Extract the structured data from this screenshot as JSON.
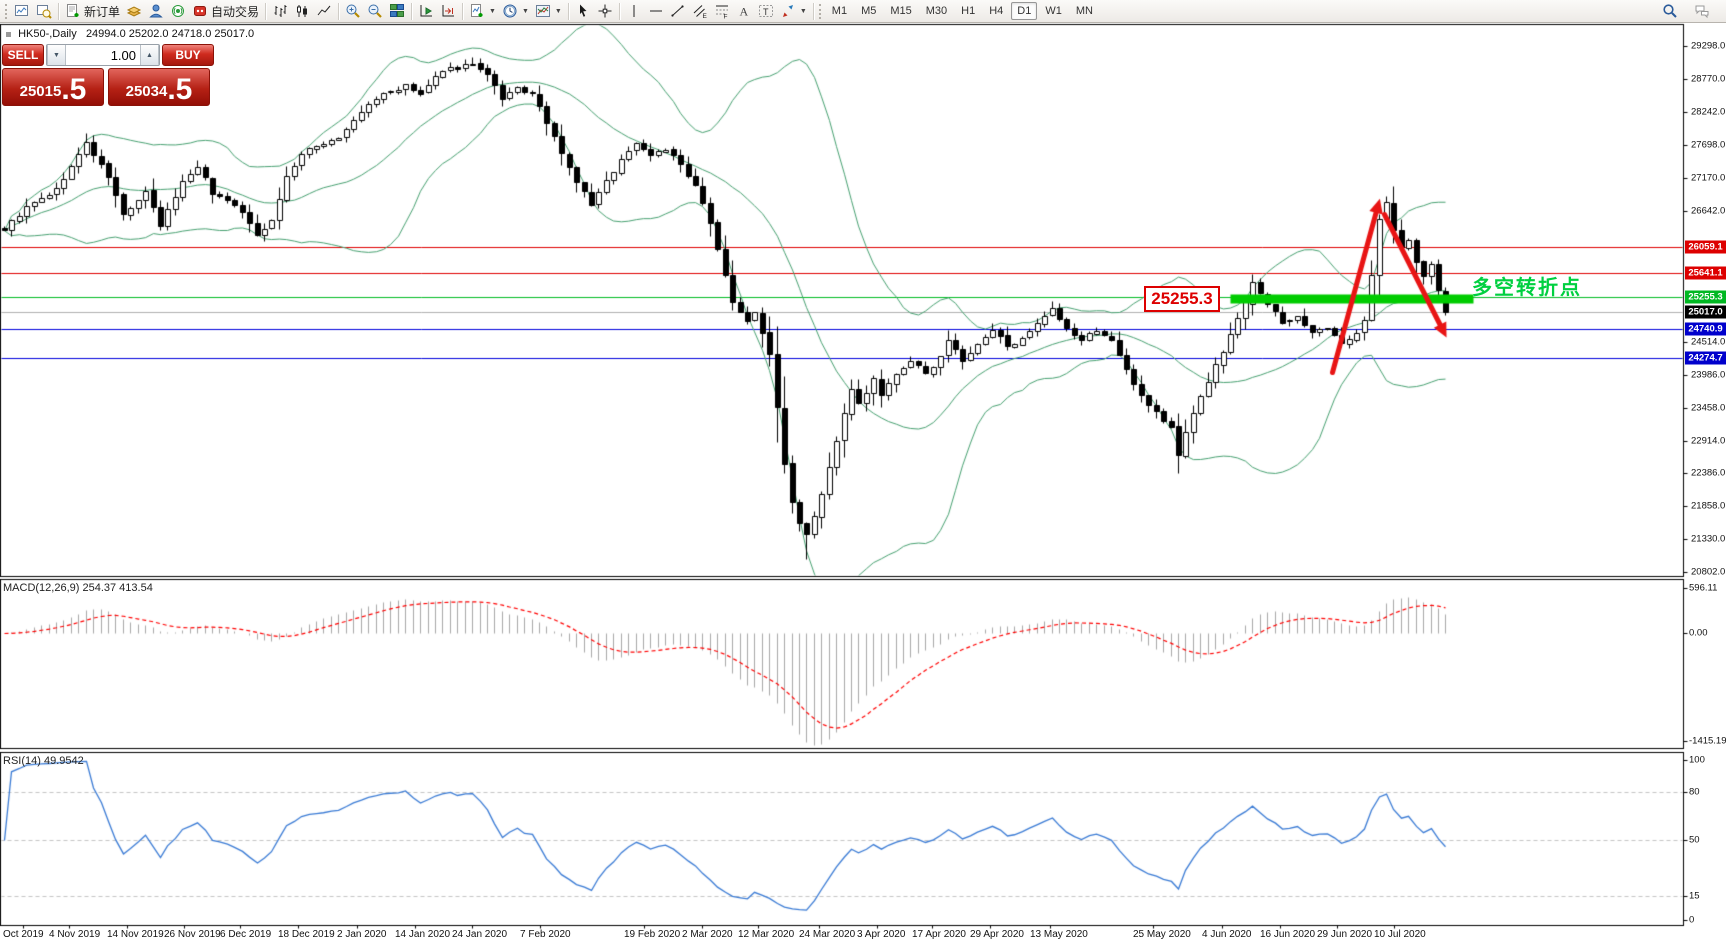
{
  "toolbar": {
    "groups": [
      {
        "items": [
          {
            "name": "new-chart",
            "icon": "new-chart"
          },
          {
            "name": "profiles",
            "icon": "profiles"
          }
        ]
      },
      {
        "items": [
          {
            "name": "new-order",
            "icon": "new-order",
            "label": "新订单"
          },
          {
            "name": "history-center",
            "icon": "history"
          },
          {
            "name": "community",
            "icon": "community"
          },
          {
            "name": "signals",
            "icon": "signals"
          },
          {
            "name": "autotrade",
            "icon": "autotrade",
            "label": "自动交易"
          }
        ]
      },
      {
        "items": [
          {
            "name": "bar-chart",
            "icon": "bar-chart"
          },
          {
            "name": "candlestick-chart",
            "icon": "candle-chart"
          },
          {
            "name": "line-chart",
            "icon": "line-chart"
          }
        ]
      },
      {
        "items": [
          {
            "name": "zoom-in",
            "icon": "zoom-in"
          },
          {
            "name": "zoom-out",
            "icon": "zoom-out"
          },
          {
            "name": "tile-windows",
            "icon": "tile"
          }
        ]
      },
      {
        "items": [
          {
            "name": "auto-scroll",
            "icon": "auto-scroll"
          },
          {
            "name": "chart-shift",
            "icon": "chart-shift"
          }
        ]
      },
      {
        "items": [
          {
            "name": "indicators",
            "icon": "indicators",
            "dropdown": true
          },
          {
            "name": "periods",
            "icon": "periods",
            "dropdown": true
          },
          {
            "name": "templates",
            "icon": "templates",
            "dropdown": true
          }
        ]
      },
      {
        "items": [
          {
            "name": "cursor",
            "icon": "cursor"
          },
          {
            "name": "crosshair",
            "icon": "crosshair"
          }
        ]
      },
      {
        "items": [
          {
            "name": "vertical-line",
            "icon": "vline"
          },
          {
            "name": "horizontal-line",
            "icon": "hline"
          },
          {
            "name": "trendline",
            "icon": "trendline"
          },
          {
            "name": "equidistant-channel",
            "icon": "channel"
          },
          {
            "name": "fibonacci",
            "icon": "fibonacci"
          },
          {
            "name": "text",
            "icon": "text"
          },
          {
            "name": "text-label",
            "icon": "label"
          },
          {
            "name": "arrow-objects",
            "icon": "arrows",
            "dropdown": true
          }
        ]
      }
    ],
    "timeframes": [
      {
        "label": "M1"
      },
      {
        "label": "M5"
      },
      {
        "label": "M15"
      },
      {
        "label": "M30"
      },
      {
        "label": "H1"
      },
      {
        "label": "H4"
      },
      {
        "label": "D1",
        "active": true
      },
      {
        "label": "W1"
      },
      {
        "label": "MN"
      }
    ],
    "right_items": [
      {
        "name": "search",
        "icon": "search"
      },
      {
        "name": "chat",
        "icon": "chat"
      }
    ]
  },
  "window": {
    "symbol_title": "HK50-,Daily",
    "ohlc_text": "24994.0 25202.0 24718.0 25017.0"
  },
  "order_panel": {
    "sell_label": "SELL",
    "buy_label": "BUY",
    "volume": "1.00",
    "sell_price_main": "25015",
    "sell_price_pips": ".5",
    "buy_price_main": "25034",
    "buy_price_pips": ".5"
  },
  "price_axis": {
    "ticks": [
      [
        "29298.0",
        46
      ],
      [
        "28770.0",
        79
      ],
      [
        "28242.0",
        112
      ],
      [
        "27698.0",
        145
      ],
      [
        "27170.0",
        178
      ],
      [
        "26642.0",
        211
      ],
      [
        "24514.0",
        342
      ],
      [
        "23986.0",
        375
      ],
      [
        "23458.0",
        408
      ],
      [
        "22914.0",
        441
      ],
      [
        "22386.0",
        473
      ],
      [
        "21858.0",
        506
      ],
      [
        "21330.0",
        539
      ],
      [
        "20802.0",
        572
      ]
    ],
    "badges": [
      [
        "26059.1",
        247,
        "#dd0000"
      ],
      [
        "25641.1",
        273,
        "#dd0000"
      ],
      [
        "25255.3",
        297,
        "#00b822"
      ],
      [
        "25017.0",
        312,
        "#000000"
      ],
      [
        "24740.9",
        329,
        "#0000cc"
      ],
      [
        "24274.7",
        358,
        "#0000cc"
      ]
    ]
  },
  "date_axis": {
    "labels": [
      [
        "Oct 2019",
        3
      ],
      [
        "4 Nov 2019",
        49
      ],
      [
        "14 Nov 2019",
        107
      ],
      [
        "26 Nov 2019",
        164
      ],
      [
        "6 Dec 2019",
        220
      ],
      [
        "18 Dec 2019",
        278
      ],
      [
        "2 Jan 2020",
        337
      ],
      [
        "14 Jan 2020",
        395
      ],
      [
        "24 Jan 2020",
        452
      ],
      [
        "7 Feb 2020",
        520
      ],
      [
        "19 Feb 2020",
        624
      ],
      [
        "2 Mar 2020",
        682
      ],
      [
        "12 Mar 2020",
        738
      ],
      [
        "24 Mar 2020",
        799
      ],
      [
        "3 Apr 2020",
        857
      ],
      [
        "17 Apr 2020",
        912
      ],
      [
        "29 Apr 2020",
        970
      ],
      [
        "13 May 2020",
        1030
      ],
      [
        "25 May 2020",
        1133
      ],
      [
        "4 Jun 2020",
        1202
      ],
      [
        "16 Jun 2020",
        1260
      ],
      [
        "29 Jun 2020",
        1317
      ],
      [
        "10 Jul 2020",
        1374
      ]
    ]
  },
  "indicator_labels": {
    "macd": "MACD(12,26,9) 254.37 413.54",
    "rsi": "RSI(14) 49.9542"
  },
  "indicator_axes": {
    "macd": [
      [
        "596.11",
        588
      ],
      [
        "0.00",
        633
      ],
      [
        "-1415.19",
        741
      ]
    ],
    "rsi": [
      [
        "100",
        760
      ],
      [
        "80",
        792
      ],
      [
        "50",
        840
      ],
      [
        "15",
        896
      ],
      [
        "0",
        920
      ]
    ]
  },
  "annotations": {
    "level_label": "25255.3",
    "turning_point": "多空转折点"
  },
  "colors": {
    "bull": "#ffffff",
    "bear": "#000000",
    "outline": "#000000",
    "band": "#46a070",
    "pivot_bar": "#00cc00",
    "macd_hist": "#a8a8a8",
    "macd_signal": "#ff0000",
    "rsi": "#3a7bd5",
    "arrow": "#e81414",
    "current": "#b0b0b0"
  },
  "chart_data": {
    "type": "candlestick",
    "symbol": "HK50",
    "period": "Daily",
    "ohlc": {
      "open": 24994.0,
      "high": 25202.0,
      "low": 24718.0,
      "close": 25017.0
    },
    "bid": 25015.5,
    "ask": 25034.5,
    "y_range": [
      20802.0,
      29298.0
    ],
    "y_ticks": [
      29298.0,
      28770.0,
      28242.0,
      27698.0,
      27170.0,
      26642.0,
      24514.0,
      23986.0,
      23458.0,
      22914.0,
      22386.0,
      21858.0,
      21330.0,
      20802.0
    ],
    "x_labels": [
      "Oct 2019",
      "4 Nov 2019",
      "14 Nov 2019",
      "26 Nov 2019",
      "6 Dec 2019",
      "18 Dec 2019",
      "2 Jan 2020",
      "14 Jan 2020",
      "24 Jan 2020",
      "7 Feb 2020",
      "19 Feb 2020",
      "2 Mar 2020",
      "12 Mar 2020",
      "24 Mar 2020",
      "3 Apr 2020",
      "17 Apr 2020",
      "29 Apr 2020",
      "13 May 2020",
      "25 May 2020",
      "4 Jun 2020",
      "16 Jun 2020",
      "29 Jun 2020",
      "10 Jul 2020"
    ],
    "levels": [
      {
        "price": 26059.1,
        "color": "#e00000"
      },
      {
        "price": 25641.1,
        "color": "#e00000"
      },
      {
        "price": 25255.3,
        "color": "#00bb22"
      },
      {
        "price": 25017.0,
        "color": "#b0b0b0"
      },
      {
        "price": 24740.9,
        "color": "#0000dd"
      },
      {
        "price": 24274.7,
        "color": "#0000dd"
      }
    ],
    "candle_count": 195,
    "close_anchors": [
      [
        0,
        26350
      ],
      [
        3,
        26700
      ],
      [
        7,
        26990
      ],
      [
        11,
        27740
      ],
      [
        14,
        27200
      ],
      [
        16,
        26580
      ],
      [
        19,
        26940
      ],
      [
        21,
        26410
      ],
      [
        24,
        27120
      ],
      [
        26,
        27380
      ],
      [
        28,
        26940
      ],
      [
        31,
        26760
      ],
      [
        34,
        26280
      ],
      [
        36,
        26490
      ],
      [
        38,
        27200
      ],
      [
        40,
        27560
      ],
      [
        43,
        27740
      ],
      [
        45,
        27820
      ],
      [
        47,
        28090
      ],
      [
        49,
        28360
      ],
      [
        51,
        28530
      ],
      [
        54,
        28660
      ],
      [
        56,
        28530
      ],
      [
        58,
        28800
      ],
      [
        60,
        28940
      ],
      [
        63,
        29010
      ],
      [
        65,
        28830
      ],
      [
        67,
        28440
      ],
      [
        69,
        28620
      ],
      [
        71,
        28530
      ],
      [
        73,
        28090
      ],
      [
        75,
        27560
      ],
      [
        77,
        27120
      ],
      [
        79,
        26760
      ],
      [
        81,
        27120
      ],
      [
        83,
        27470
      ],
      [
        85,
        27740
      ],
      [
        87,
        27560
      ],
      [
        89,
        27650
      ],
      [
        91,
        27380
      ],
      [
        93,
        27030
      ],
      [
        95,
        26490
      ],
      [
        96,
        26050
      ],
      [
        98,
        25170
      ],
      [
        100,
        24900
      ],
      [
        101,
        24990
      ],
      [
        103,
        24370
      ],
      [
        104,
        23480
      ],
      [
        105,
        22600
      ],
      [
        106,
        21980
      ],
      [
        107,
        21650
      ],
      [
        108,
        21450
      ],
      [
        109,
        21750
      ],
      [
        110,
        22100
      ],
      [
        111,
        22500
      ],
      [
        112,
        22960
      ],
      [
        113,
        23360
      ],
      [
        114,
        23760
      ],
      [
        115,
        23520
      ],
      [
        117,
        23920
      ],
      [
        118,
        23680
      ],
      [
        120,
        24000
      ],
      [
        122,
        24240
      ],
      [
        124,
        24000
      ],
      [
        126,
        24320
      ],
      [
        127,
        24570
      ],
      [
        129,
        24240
      ],
      [
        131,
        24480
      ],
      [
        133,
        24730
      ],
      [
        135,
        24480
      ],
      [
        137,
        24570
      ],
      [
        139,
        24810
      ],
      [
        141,
        25050
      ],
      [
        143,
        24730
      ],
      [
        145,
        24570
      ],
      [
        147,
        24730
      ],
      [
        149,
        24570
      ],
      [
        151,
        24080
      ],
      [
        153,
        23680
      ],
      [
        155,
        23400
      ],
      [
        157,
        23150
      ],
      [
        158,
        22700
      ],
      [
        159,
        23100
      ],
      [
        160,
        23400
      ],
      [
        162,
        23900
      ],
      [
        164,
        24400
      ],
      [
        166,
        24900
      ],
      [
        167,
        25200
      ],
      [
        168,
        25530
      ],
      [
        170,
        25150
      ],
      [
        172,
        24850
      ],
      [
        174,
        24950
      ],
      [
        176,
        24680
      ],
      [
        178,
        24750
      ],
      [
        180,
        24500
      ],
      [
        182,
        24700
      ],
      [
        183,
        24900
      ],
      [
        184,
        25600
      ],
      [
        185,
        26500
      ],
      [
        186,
        26780
      ],
      [
        187,
        26350
      ],
      [
        188,
        26050
      ],
      [
        189,
        26150
      ],
      [
        190,
        25850
      ],
      [
        191,
        25600
      ],
      [
        192,
        25750
      ],
      [
        193,
        25350
      ],
      [
        194,
        25017
      ]
    ],
    "indicators": {
      "bollinger": {
        "period": 20,
        "deviation": 2
      },
      "macd": {
        "fast": 12,
        "slow": 26,
        "signal": 9,
        "value": 254.37,
        "signal_value": 413.54,
        "axis_max": 596.11,
        "axis_min": -1415.19
      },
      "rsi": {
        "period": 14,
        "value": 49.9542,
        "levels": [
          80,
          50,
          15
        ]
      }
    },
    "drawings": {
      "support_bar": {
        "price": 25255.3,
        "label": "25255.3"
      },
      "turning_point_text": "多空转折点",
      "trend_arrows": [
        {
          "dir": "up"
        },
        {
          "dir": "down"
        }
      ]
    }
  }
}
